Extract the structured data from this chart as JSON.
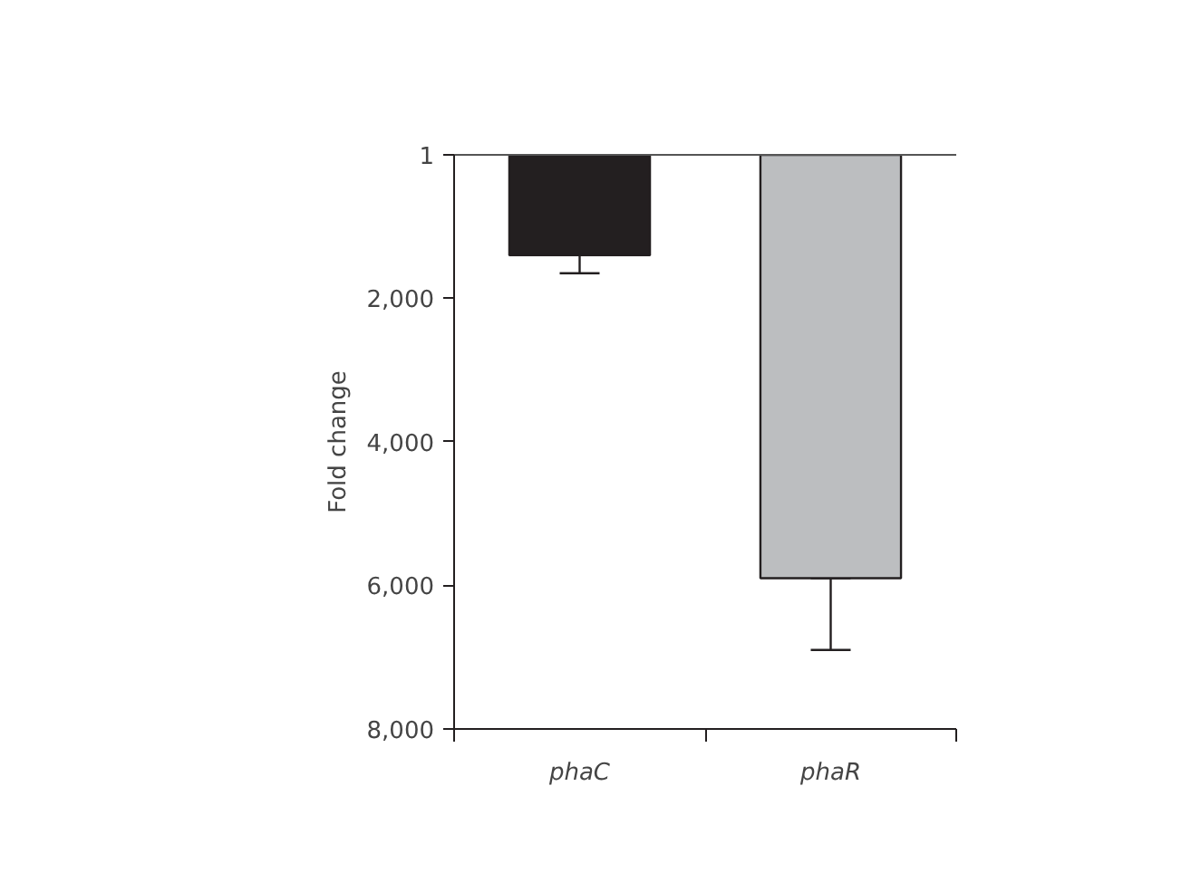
{
  "chart_data": {
    "type": "bar",
    "ylabel": "Fold change",
    "categories": [
      "phaC",
      "phaR"
    ],
    "values": [
      1400,
      5900
    ],
    "colors": [
      "#231f20",
      "#bcbec0"
    ],
    "errors": [
      [
        1400,
        1650
      ],
      [
        5900,
        6900
      ]
    ],
    "ylim": [
      8000,
      1
    ],
    "yticks": [
      1,
      {
        "value": 2000,
        "label": "2,000"
      },
      {
        "value": 4000,
        "label": "4,000"
      },
      {
        "value": 6000,
        "label": "6,000"
      },
      {
        "value": 8000,
        "label": "8,000"
      }
    ],
    "grid": false
  }
}
